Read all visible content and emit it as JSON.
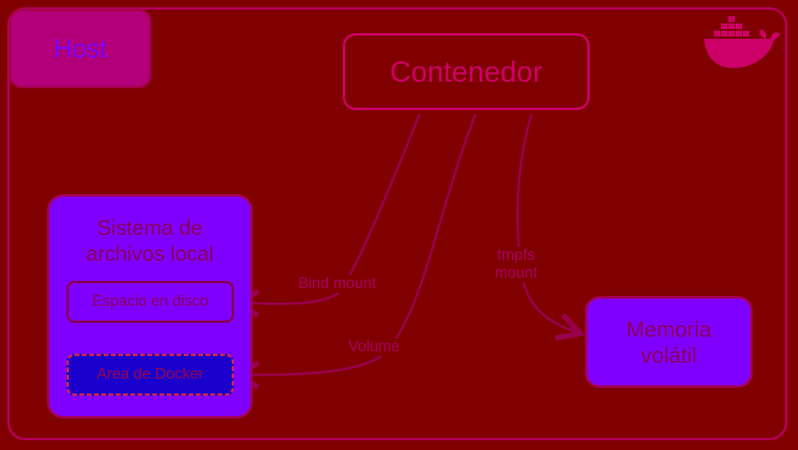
{
  "host": {
    "label": "Host"
  },
  "container": {
    "label": "Contenedor"
  },
  "filesystem": {
    "title_line1": "Sistema de",
    "title_line2": "archivos local",
    "disk_label": "Espacio en disco",
    "docker_area_label": "Area de Docker"
  },
  "memory": {
    "line1": "Memoria",
    "line2": "volátil"
  },
  "edges": {
    "bind_mount": "Bind mount",
    "volume": "Volume",
    "tmpfs_line1": "tmpfs",
    "tmpfs_line2": "mount"
  },
  "icons": {
    "logo": "docker-whale-icon"
  },
  "colors": {
    "background": "#800000",
    "accent": "#cc0066",
    "box_fill": "#7f00ff",
    "docker_area_fill": "#1a00cc"
  }
}
